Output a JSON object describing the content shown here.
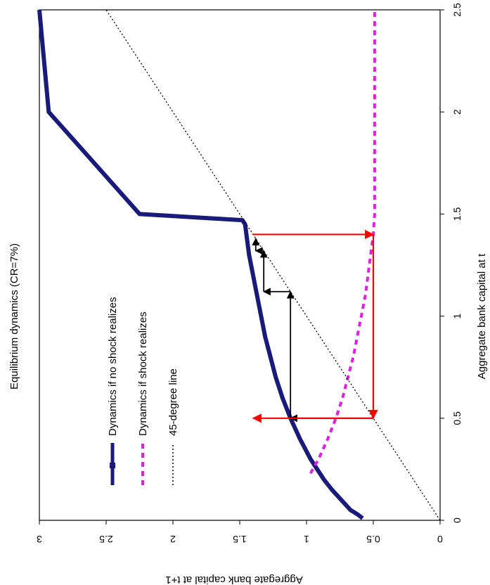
{
  "chart_data": {
    "type": "line",
    "title": "Equilibrium dynamics (CR=7%)",
    "xlabel": "Aggregate bank capital at t",
    "ylabel": "Aggregate bank capital at t+1",
    "xlim": [
      0,
      2.5
    ],
    "ylim": [
      0,
      3
    ],
    "xticks": [
      "0",
      "0.5",
      "1",
      "1.5",
      "2",
      "2.5"
    ],
    "yticks": [
      "0",
      "0.5",
      "1",
      "1.5",
      "2",
      "2.5",
      "3"
    ],
    "grid": false,
    "legend_position": "left, rotated with chart",
    "series": [
      {
        "name": "Dynamics if no shock realizes",
        "color": "#1a1a7a",
        "style": "solid-thick",
        "x": [
          0.01,
          0.03,
          0.05,
          0.1,
          0.15,
          0.2,
          0.3,
          0.4,
          0.5,
          0.6,
          0.7,
          0.8,
          0.9,
          1.0,
          1.1,
          1.2,
          1.3,
          1.4,
          1.45,
          1.47,
          1.5,
          2.0,
          2.5
        ],
        "y": [
          0.58,
          0.62,
          0.67,
          0.74,
          0.81,
          0.87,
          0.97,
          1.05,
          1.12,
          1.18,
          1.23,
          1.27,
          1.31,
          1.34,
          1.37,
          1.4,
          1.43,
          1.45,
          1.46,
          1.48,
          2.25,
          2.93,
          3.0
        ]
      },
      {
        "name": "Dynamics if shock realizes",
        "color": "#e020e0",
        "style": "dashed",
        "x": [
          0.23,
          0.3,
          0.4,
          0.5,
          0.6,
          0.7,
          0.8,
          0.9,
          1.0,
          1.1,
          1.2,
          1.3,
          1.4,
          1.5,
          2.0,
          2.5
        ],
        "y": [
          0.97,
          0.91,
          0.84,
          0.78,
          0.73,
          0.69,
          0.65,
          0.62,
          0.59,
          0.56,
          0.54,
          0.52,
          0.5,
          0.49,
          0.49,
          0.49
        ]
      },
      {
        "name": "45-degree line",
        "color": "#000000",
        "style": "dotted",
        "x": [
          0,
          2.5
        ],
        "y": [
          0,
          2.5
        ]
      }
    ],
    "annotations": [
      {
        "type": "arrow",
        "color": "#000000",
        "from": [
          0.5,
          0.5
        ],
        "to": [
          0.5,
          1.12
        ]
      },
      {
        "type": "arrow",
        "color": "#000000",
        "from": [
          0.5,
          1.12
        ],
        "to": [
          1.12,
          1.12
        ]
      },
      {
        "type": "arrow",
        "color": "#000000",
        "from": [
          1.12,
          1.12
        ],
        "to": [
          1.12,
          1.32
        ]
      },
      {
        "type": "arrow",
        "color": "#000000",
        "from": [
          1.12,
          1.32
        ],
        "to": [
          1.32,
          1.32
        ]
      },
      {
        "type": "arrow",
        "color": "#000000",
        "from": [
          1.32,
          1.32
        ],
        "to": [
          1.32,
          1.38
        ]
      },
      {
        "type": "arrow",
        "color": "#000000",
        "from": [
          1.32,
          1.38
        ],
        "to": [
          1.38,
          1.38
        ]
      },
      {
        "type": "arrow",
        "color": "#ff0000",
        "from": [
          1.4,
          1.4
        ],
        "to": [
          1.4,
          0.5
        ]
      },
      {
        "type": "arrow",
        "color": "#ff0000",
        "from": [
          1.4,
          0.5
        ],
        "to": [
          0.5,
          0.5
        ]
      },
      {
        "type": "arrow",
        "color": "#ff0000",
        "from": [
          0.5,
          0.5
        ],
        "to": [
          0.5,
          1.4
        ]
      }
    ]
  }
}
